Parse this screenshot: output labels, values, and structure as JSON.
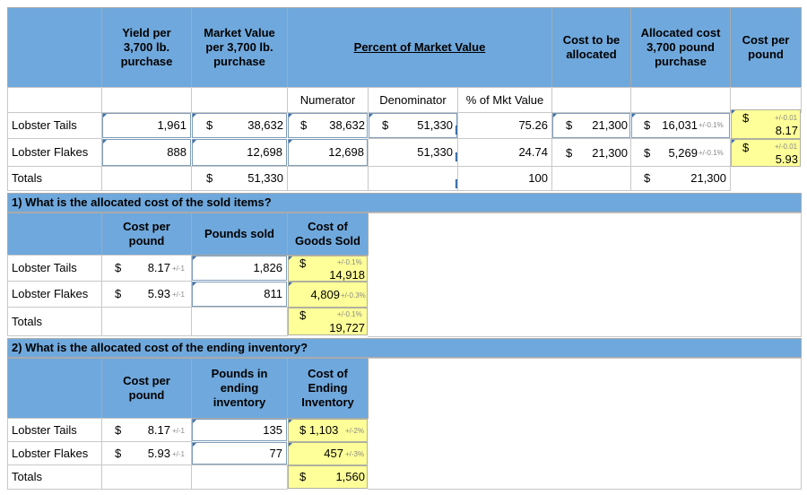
{
  "top": {
    "headers": {
      "yield": "Yield per 3,700 lb. purchase",
      "market_value": "Market Value per 3,700 lb. purchase",
      "percent": "Percent of Market Value",
      "cost_alloc": "Cost to be allocated",
      "allocated": "Allocated cost 3,700 pound purchase",
      "cost_per_pound": "Cost per pound"
    },
    "sub": {
      "numerator": "Numerator",
      "denominator": "Denominator",
      "pct": "% of Mkt Value"
    },
    "rows": {
      "tails": {
        "label": "Lobster Tails",
        "yield": "1,961",
        "mv_dollar": "$",
        "mv": "38,632",
        "num_dollar": "$",
        "num": "38,632",
        "den_dollar": "$",
        "den": "51,330",
        "pct": "75.26",
        "ca_dollar": "$",
        "ca": "21,300",
        "al_dollar": "$",
        "al": "16,031",
        "al_tol": "+/-0.1%",
        "cpp_dollar": "$",
        "cpp": "8.17",
        "cpp_tol": "+/-0.01"
      },
      "flakes": {
        "label": "Lobster Flakes",
        "yield": "888",
        "mv": "12,698",
        "num": "12,698",
        "den": "51,330",
        "pct": "24.74",
        "ca_dollar": "$",
        "ca": "21,300",
        "al_dollar": "$",
        "al": "5,269",
        "al_tol": "+/-0.1%",
        "cpp_dollar": "$",
        "cpp": "5.93",
        "cpp_tol": "+/-0.01"
      },
      "totals": {
        "label": "Totals",
        "mv_dollar": "$",
        "mv": "51,330",
        "pct": "100",
        "al_dollar": "$",
        "al": "21,300"
      }
    }
  },
  "q1": {
    "title": "1) What is the allocated cost of the sold items?",
    "headers": {
      "cpp": "Cost per pound",
      "sold": "Pounds sold",
      "cogs": "Cost of Goods Sold"
    },
    "rows": {
      "tails": {
        "label": "Lobster Tails",
        "dollar": "$",
        "cpp": "8.17",
        "cpp_tol": "+/-1",
        "sold": "1,826",
        "cogs_dollar": "$",
        "cogs": "14,918",
        "cogs_tol": "+/-0.1%"
      },
      "flakes": {
        "label": "Lobster Flakes",
        "dollar": "$",
        "cpp": "5.93",
        "cpp_tol": "+/-1",
        "sold": "811",
        "cogs": "4,809",
        "cogs_tol": "+/-0.3%"
      },
      "totals": {
        "label": "Totals",
        "cogs_dollar": "$",
        "cogs": "19,727",
        "cogs_tol": "+/-0.1%"
      }
    }
  },
  "q2": {
    "title": "2) What is the allocated cost of the ending inventory?",
    "headers": {
      "cpp": "Cost per pound",
      "ending": "Pounds in ending inventory",
      "coei": "Cost of Ending Inventory"
    },
    "rows": {
      "tails": {
        "label": "Lobster Tails",
        "dollar": "$",
        "cpp": "8.17",
        "cpp_tol": "+/-1",
        "lbs": "135",
        "coei": "$ 1,103",
        "coei_tol": "+/-2%"
      },
      "flakes": {
        "label": "Lobster Flakes",
        "dollar": "$",
        "cpp": "5.93",
        "cpp_tol": "+/-1",
        "lbs": "77",
        "coei": "457",
        "coei_tol": "+/-3%"
      },
      "totals": {
        "label": "Totals",
        "coei_dollar": "$",
        "coei": "1,560"
      }
    }
  },
  "icons": {
    "formula": "F"
  },
  "colors": {
    "header_blue": "#6fa8dc",
    "answer_yellow": "#ffff99",
    "formula_icon": "#4a7ebb"
  }
}
